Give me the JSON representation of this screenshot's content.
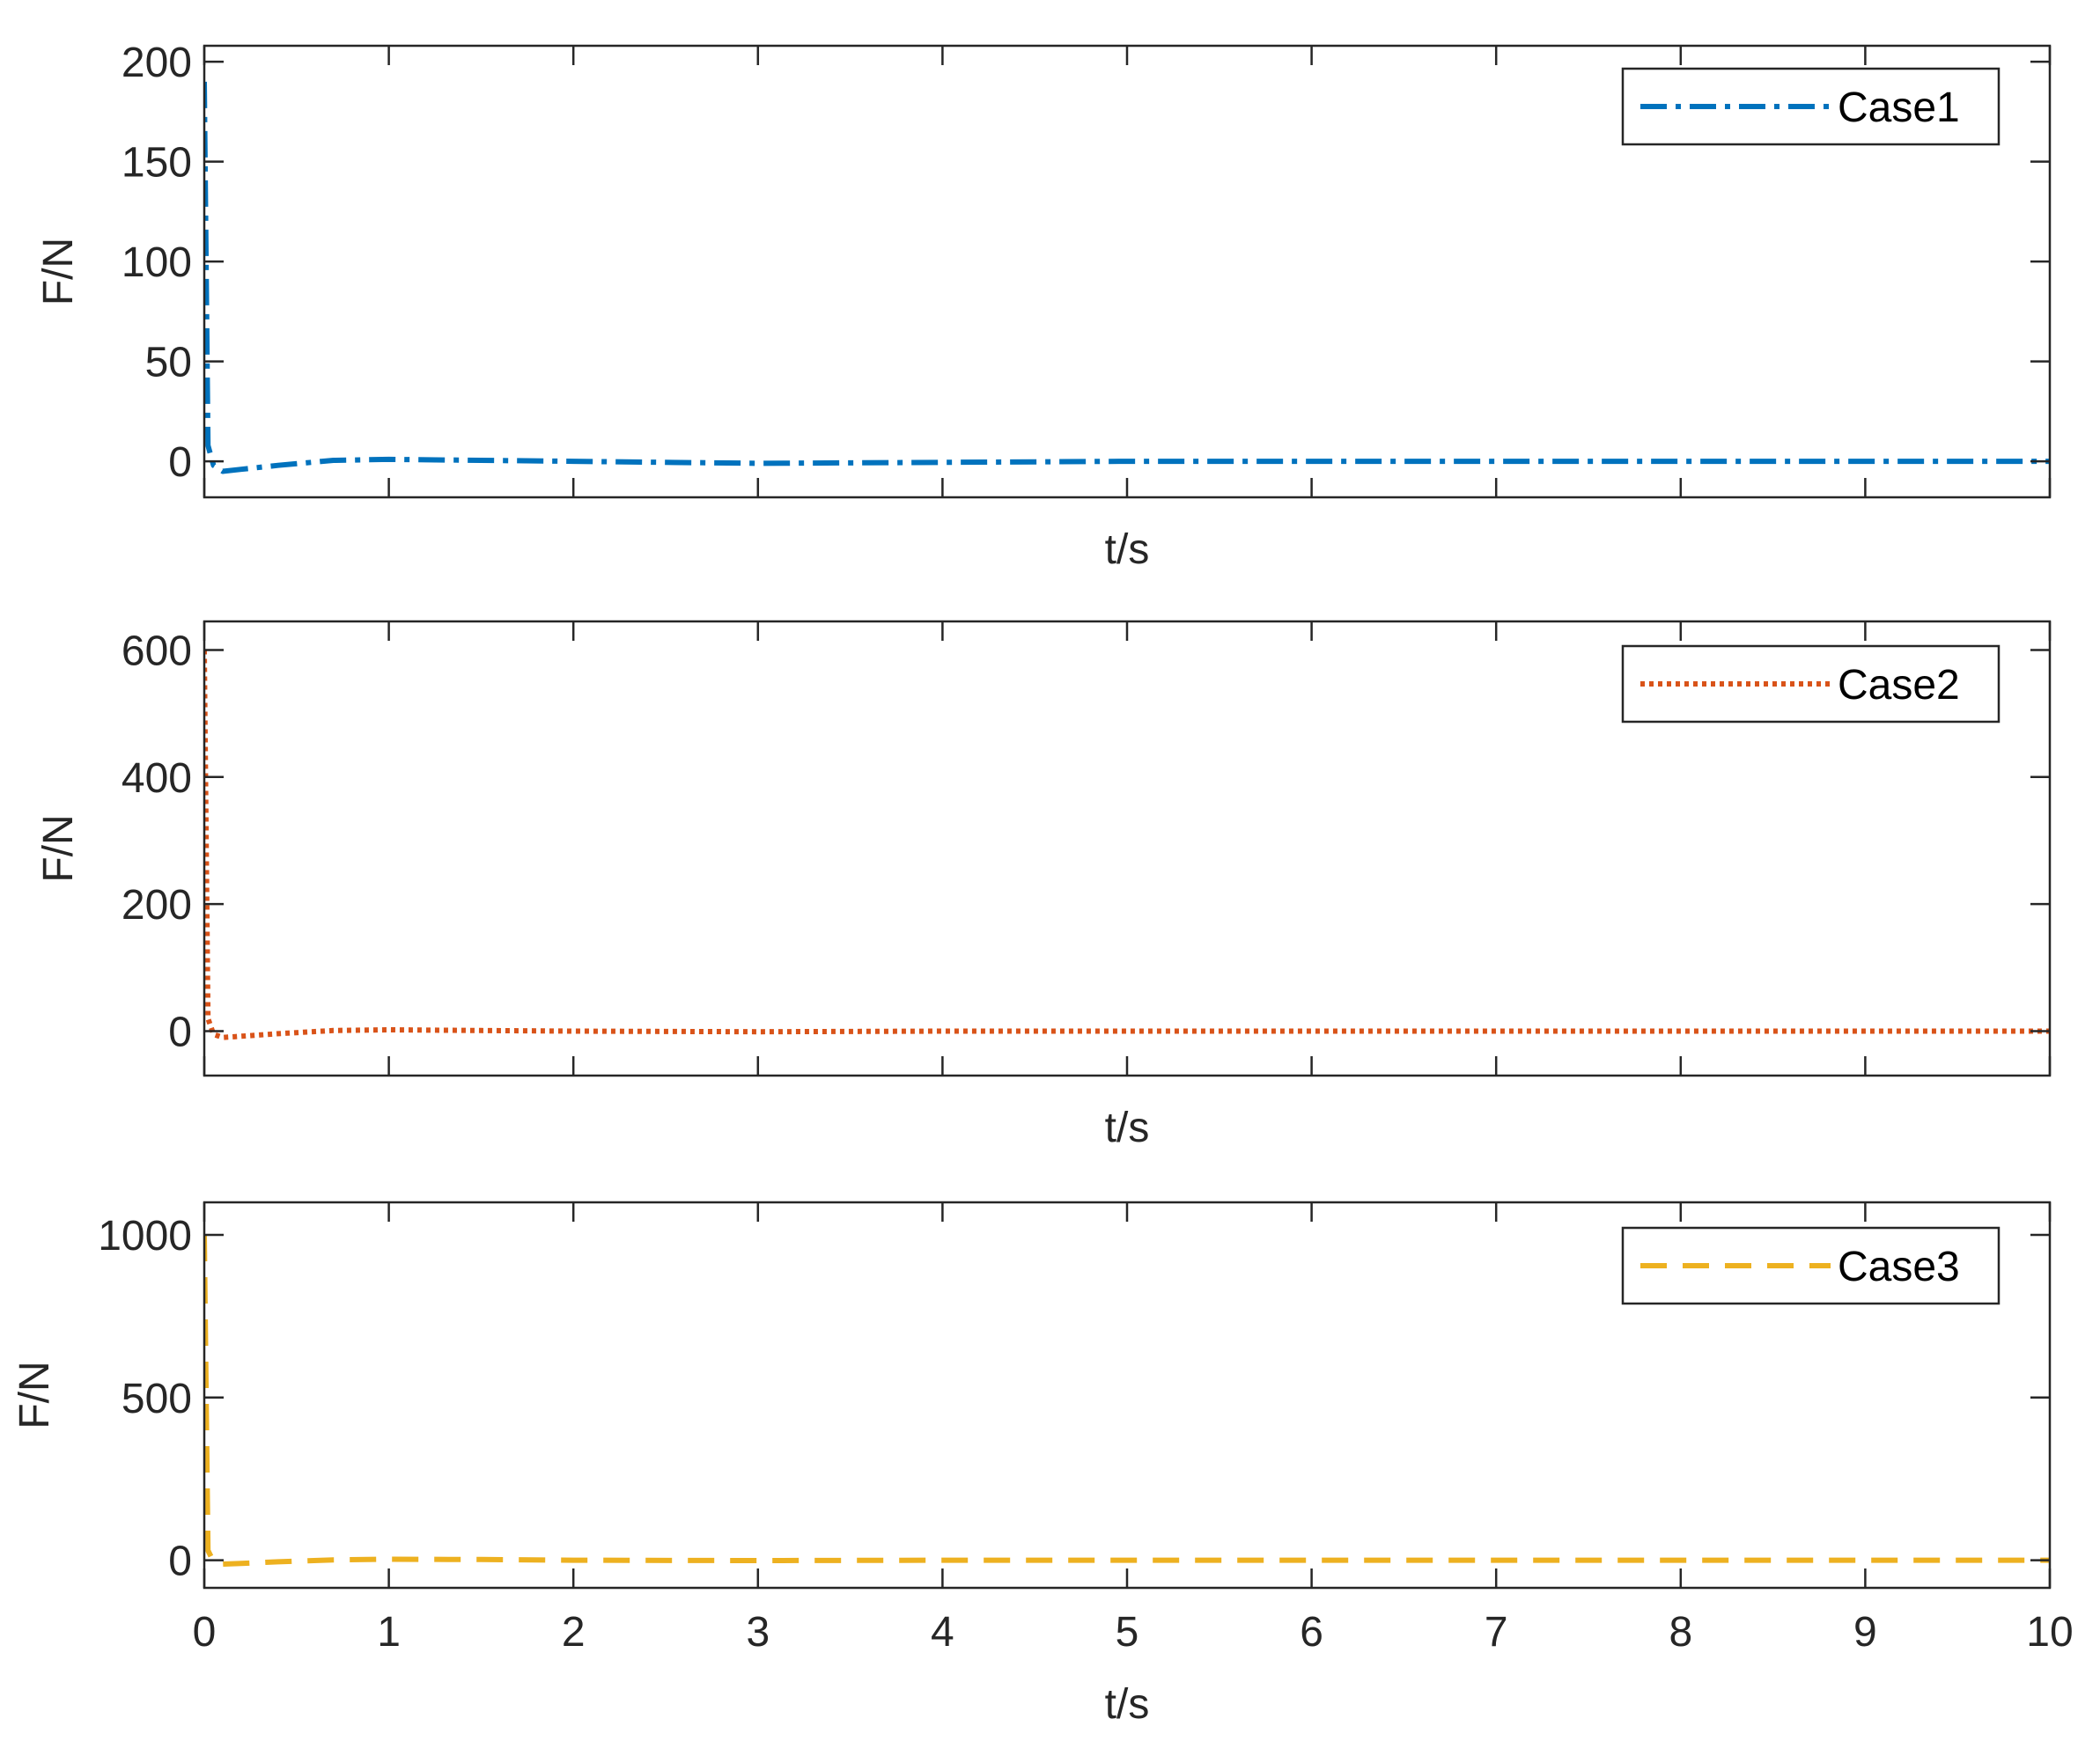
{
  "chart_data": [
    {
      "type": "line",
      "xlabel": "t/s",
      "ylabel": "F/N",
      "xlim": [
        0,
        10
      ],
      "ylim": [
        -18,
        208
      ],
      "x_ticks": [
        0,
        1,
        2,
        3,
        4,
        5,
        6,
        7,
        8,
        9,
        10
      ],
      "x_tick_labels_shown": false,
      "y_ticks": [
        0,
        50,
        100,
        150,
        200
      ],
      "y_tick_labels": [
        "0",
        "50",
        "100",
        "150",
        "200"
      ],
      "legend_position": "top-right",
      "series": [
        {
          "name": "Case1",
          "color": "#0072BD",
          "line_style": "dash-dot",
          "x": [
            0,
            0.02,
            0.05,
            0.1,
            0.2,
            0.4,
            0.7,
            1.0,
            1.5,
            2,
            3,
            4,
            5,
            6,
            7,
            8,
            9,
            10
          ],
          "y": [
            190,
            8,
            -2,
            -5,
            -4,
            -2,
            0.5,
            1,
            0.5,
            0,
            -1,
            -0.5,
            0,
            0,
            0,
            0,
            0,
            0
          ]
        }
      ]
    },
    {
      "type": "line",
      "xlabel": "t/s",
      "ylabel": "F/N",
      "xlim": [
        0,
        10
      ],
      "ylim": [
        -70,
        645
      ],
      "x_ticks": [
        0,
        1,
        2,
        3,
        4,
        5,
        6,
        7,
        8,
        9,
        10
      ],
      "x_tick_labels_shown": false,
      "y_ticks": [
        0,
        200,
        400,
        600
      ],
      "y_tick_labels": [
        "0",
        "200",
        "400",
        "600"
      ],
      "legend_position": "top-right",
      "series": [
        {
          "name": "Case2",
          "color": "#D95319",
          "line_style": "dotted",
          "x": [
            0,
            0.02,
            0.05,
            0.1,
            0.2,
            0.4,
            0.7,
            1.0,
            1.5,
            2,
            3,
            4,
            5,
            6,
            7,
            8,
            9,
            10
          ],
          "y": [
            600,
            20,
            -5,
            -10,
            -8,
            -4,
            1,
            2,
            1,
            0,
            -1,
            0,
            0,
            0,
            0,
            0,
            0,
            0
          ]
        }
      ]
    },
    {
      "type": "line",
      "xlabel": "t/s",
      "ylabel": "F/N",
      "xlim": [
        0,
        10
      ],
      "ylim": [
        -85,
        1100
      ],
      "x_ticks": [
        0,
        1,
        2,
        3,
        4,
        5,
        6,
        7,
        8,
        9,
        10
      ],
      "x_tick_labels_shown": true,
      "x_tick_labels": [
        "0",
        "1",
        "2",
        "3",
        "4",
        "5",
        "6",
        "7",
        "8",
        "9",
        "10"
      ],
      "y_ticks": [
        0,
        500,
        1000
      ],
      "y_tick_labels": [
        "0",
        "500",
        "1000"
      ],
      "legend_position": "top-right",
      "series": [
        {
          "name": "Case3",
          "color": "#EDB120",
          "line_style": "dashed",
          "x": [
            0,
            0.02,
            0.05,
            0.1,
            0.2,
            0.4,
            0.7,
            1.0,
            1.5,
            2,
            3,
            4,
            5,
            6,
            7,
            8,
            9,
            10
          ],
          "y": [
            1000,
            30,
            -5,
            -12,
            -10,
            -5,
            1,
            3,
            2,
            0,
            -1,
            0,
            0,
            0,
            0,
            0,
            0,
            0
          ]
        }
      ]
    }
  ]
}
